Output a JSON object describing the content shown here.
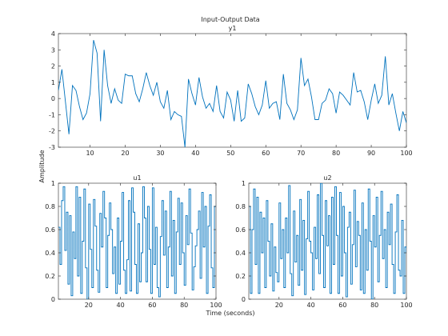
{
  "figure": {
    "suptitle": "Input-Output Data",
    "ylabel": "Amplitude",
    "xlabel": "Time (seconds)"
  },
  "chart_data": [
    {
      "type": "line",
      "title": "y1",
      "xlabel": "",
      "ylabel": "",
      "xlim": [
        1,
        100
      ],
      "ylim": [
        -3,
        4
      ],
      "xticks": [
        10,
        20,
        30,
        40,
        50,
        60,
        70,
        80,
        90,
        100
      ],
      "yticks": [
        -3,
        -2,
        -1,
        0,
        1,
        2,
        3,
        4
      ],
      "xtick_labels": [
        "10",
        "20",
        "30",
        "40",
        "50",
        "60",
        "70",
        "80",
        "90",
        "100"
      ],
      "ytick_labels": [
        "-3",
        "-2",
        "-1",
        "0",
        "1",
        "2",
        "3",
        "4"
      ],
      "grid": false,
      "series": [
        {
          "color": "#0072BD",
          "x": [
            1,
            2,
            3,
            4,
            5,
            6,
            7,
            8,
            9,
            10,
            11,
            12,
            13,
            14,
            15,
            16,
            17,
            18,
            19,
            20,
            21,
            22,
            23,
            24,
            25,
            26,
            27,
            28,
            29,
            30,
            31,
            32,
            33,
            34,
            35,
            36,
            37,
            38,
            39,
            40,
            41,
            42,
            43,
            44,
            45,
            46,
            47,
            48,
            49,
            50,
            51,
            52,
            53,
            54,
            55,
            56,
            57,
            58,
            59,
            60,
            61,
            62,
            63,
            64,
            65,
            66,
            67,
            68,
            69,
            70,
            71,
            72,
            73,
            74,
            75,
            76,
            77,
            78,
            79,
            80,
            81,
            82,
            83,
            84,
            85,
            86,
            87,
            88,
            89,
            90,
            91,
            92,
            93,
            94,
            95,
            96,
            97,
            98,
            99,
            100
          ],
          "values": [
            0.5,
            1.8,
            -0.2,
            -2.2,
            0.8,
            0.5,
            -0.5,
            -1.3,
            -0.9,
            0.3,
            3.6,
            2.8,
            -1.4,
            3.0,
            0.8,
            -0.3,
            0.6,
            -0.1,
            -0.3,
            1.5,
            1.4,
            1.4,
            0.3,
            -0.2,
            0.6,
            1.6,
            0.8,
            0.2,
            1.0,
            -0.2,
            -0.6,
            0.5,
            -1.3,
            -0.8,
            -1.0,
            -1.1,
            -3.0,
            1.2,
            0.3,
            -0.4,
            1.3,
            0.1,
            -0.6,
            -0.3,
            -0.8,
            0.8,
            -0.8,
            -1.2,
            0.4,
            -0.1,
            -1.4,
            0.5,
            -1.4,
            -1.2,
            0.9,
            0.3,
            -0.5,
            -1.0,
            -0.4,
            1.1,
            -0.6,
            -0.3,
            -0.2,
            -1.3,
            1.5,
            -0.3,
            -0.7,
            -1.3,
            -0.7,
            2.5,
            0.8,
            1.2,
            0.1,
            -1.3,
            -1.3,
            -0.3,
            -0.1,
            0.6,
            0.3,
            -0.9,
            0.4,
            0.2,
            -0.1,
            -0.4,
            1.6,
            0.4,
            0.5,
            -0.2,
            -1.3,
            -0.1,
            0.9,
            -0.3,
            0.2,
            2.6,
            -0.4,
            0.3,
            -0.9,
            -2.0,
            -0.8,
            -1.5
          ]
        }
      ]
    },
    {
      "type": "line",
      "title": "u1",
      "xlabel": "",
      "ylabel": "",
      "xlim": [
        1,
        100
      ],
      "ylim": [
        0,
        1
      ],
      "xticks": [
        20,
        40,
        60,
        80,
        100
      ],
      "yticks": [
        0,
        0.2,
        0.4,
        0.6,
        0.8,
        1
      ],
      "xtick_labels": [
        "20",
        "40",
        "60",
        "80",
        "100"
      ],
      "ytick_labels": [
        "0",
        "0.2",
        "0.4",
        "0.6",
        "0.8",
        "1"
      ],
      "grid": false,
      "step": true,
      "series": [
        {
          "color": "#0072BD",
          "x": [
            1,
            2,
            3,
            4,
            5,
            6,
            7,
            8,
            9,
            10,
            11,
            12,
            13,
            14,
            15,
            16,
            17,
            18,
            19,
            20,
            21,
            22,
            23,
            24,
            25,
            26,
            27,
            28,
            29,
            30,
            31,
            32,
            33,
            34,
            35,
            36,
            37,
            38,
            39,
            40,
            41,
            42,
            43,
            44,
            45,
            46,
            47,
            48,
            49,
            50,
            51,
            52,
            53,
            54,
            55,
            56,
            57,
            58,
            59,
            60,
            61,
            62,
            63,
            64,
            65,
            66,
            67,
            68,
            69,
            70,
            71,
            72,
            73,
            74,
            75,
            76,
            77,
            78,
            79,
            80,
            81,
            82,
            83,
            84,
            85,
            86,
            87,
            88,
            89,
            90,
            91,
            92,
            93,
            94,
            95,
            96,
            97,
            98,
            99,
            100
          ],
          "values": [
            0.62,
            0.3,
            0.85,
            0.97,
            0.42,
            0.75,
            0.13,
            0.72,
            0.03,
            0.58,
            0.35,
            0.97,
            0.2,
            0.88,
            0.05,
            0.5,
            0.95,
            0.27,
            0.0,
            0.82,
            0.43,
            0.1,
            0.86,
            0.63,
            0.25,
            0.06,
            0.74,
            0.45,
            0.93,
            0.7,
            0.1,
            0.55,
            0.83,
            0.6,
            0.22,
            0.45,
            0.05,
            0.7,
            0.13,
            0.5,
            0.92,
            0.25,
            0.05,
            0.34,
            0.85,
            0.07,
            0.96,
            0.75,
            0.3,
            0.05,
            0.65,
            0.15,
            0.4,
            0.97,
            0.7,
            0.15,
            0.8,
            0.43,
            0.05,
            0.96,
            0.3,
            0.62,
            0.1,
            0.02,
            0.54,
            0.85,
            0.38,
            0.76,
            0.1,
            0.45,
            0.93,
            0.2,
            0.68,
            0.05,
            0.58,
            0.87,
            0.3,
            0.83,
            0.4,
            0.12,
            0.72,
            0.47,
            0.95,
            0.57,
            0.08,
            0.28,
            0.46,
            0.6,
            0.76,
            0.18,
            0.92,
            0.45,
            0.8,
            0.05,
            0.63,
            0.9,
            0.27,
            0.1,
            0.8,
            0.8
          ]
        }
      ]
    },
    {
      "type": "line",
      "title": "u2",
      "xlabel": "",
      "ylabel": "",
      "xlim": [
        1,
        100
      ],
      "ylim": [
        0,
        1
      ],
      "xticks": [
        20,
        40,
        60,
        80,
        100
      ],
      "yticks": [
        0,
        0.2,
        0.4,
        0.6,
        0.8,
        1
      ],
      "xtick_labels": [
        "20",
        "40",
        "60",
        "80",
        "100"
      ],
      "ytick_labels": [
        "0",
        "0.2",
        "0.4",
        "0.6",
        "0.8",
        "1"
      ],
      "grid": false,
      "step": true,
      "series": [
        {
          "color": "#0072BD",
          "x": [
            1,
            2,
            3,
            4,
            5,
            6,
            7,
            8,
            9,
            10,
            11,
            12,
            13,
            14,
            15,
            16,
            17,
            18,
            19,
            20,
            21,
            22,
            23,
            24,
            25,
            26,
            27,
            28,
            29,
            30,
            31,
            32,
            33,
            34,
            35,
            36,
            37,
            38,
            39,
            40,
            41,
            42,
            43,
            44,
            45,
            46,
            47,
            48,
            49,
            50,
            51,
            52,
            53,
            54,
            55,
            56,
            57,
            58,
            59,
            60,
            61,
            62,
            63,
            64,
            65,
            66,
            67,
            68,
            69,
            70,
            71,
            72,
            73,
            74,
            75,
            76,
            77,
            78,
            79,
            80,
            81,
            82,
            83,
            84,
            85,
            86,
            87,
            88,
            89,
            90,
            91,
            92,
            93,
            94,
            95,
            96,
            97,
            98,
            99,
            100
          ],
          "values": [
            0.8,
            0.05,
            0.6,
            0.95,
            0.3,
            0.88,
            0.05,
            0.75,
            0.4,
            0.7,
            0.1,
            0.85,
            0.5,
            0.2,
            0.65,
            0.07,
            0.45,
            0.23,
            0.15,
            0.83,
            0.35,
            0.6,
            0.1,
            0.7,
            0.4,
            0.98,
            0.22,
            0.03,
            0.76,
            0.32,
            0.55,
            0.12,
            0.86,
            0.25,
            0.68,
            0.04,
            0.52,
            0.93,
            0.5,
            0.4,
            0.08,
            0.62,
            0.35,
            0.9,
            0.22,
            1.0,
            0.55,
            0.1,
            0.85,
            0.46,
            0.72,
            0.05,
            0.88,
            0.3,
            0.97,
            0.55,
            0.05,
            0.92,
            0.2,
            0.8,
            0.4,
            0.02,
            0.62,
            0.75,
            0.13,
            0.47,
            0.94,
            0.28,
            0.67,
            0.55,
            0.08,
            0.83,
            0.05,
            0.6,
            0.25,
            0.95,
            0.5,
            0.0,
            0.72,
            0.45,
            0.88,
            0.15,
            0.55,
            0.93,
            0.35,
            0.6,
            0.1,
            0.75,
            0.47,
            0.82,
            0.3,
            0.05,
            0.58,
            0.9,
            0.25,
            0.2,
            0.68,
            0.05,
            0.45,
            0.4
          ]
        }
      ]
    }
  ]
}
